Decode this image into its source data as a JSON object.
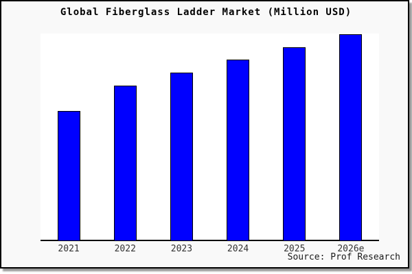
{
  "title": "Global Fiberglass Ladder Market (Million USD)",
  "source": "Source: Prof Research",
  "colors": {
    "bar_fill": "#0000ff",
    "bar_edge": "#000000",
    "frame_background": "#f9f9f9",
    "plot_background": "#ffffff",
    "axis_line": "#000000",
    "frame_border": "#000000",
    "shadow": "#999999",
    "tick_label": "#333333"
  },
  "chart_data": {
    "type": "bar",
    "title": "Global Fiberglass Ladder Market (Million USD)",
    "categories": [
      "2021",
      "2022",
      "2023",
      "2024",
      "2025",
      "2026e"
    ],
    "values": [
      62.9,
      75.2,
      81.5,
      87.7,
      93.7,
      100
    ],
    "xlabel": "",
    "ylabel": "",
    "ylim": [
      0,
      100.3
    ],
    "value_note": "relative scale; chart shows no y-axis ticks or data labels",
    "grid": false,
    "legend": false,
    "bar_color": "#0000ff",
    "bar_edge_color": "#000000",
    "source": "Source: Prof Research"
  }
}
